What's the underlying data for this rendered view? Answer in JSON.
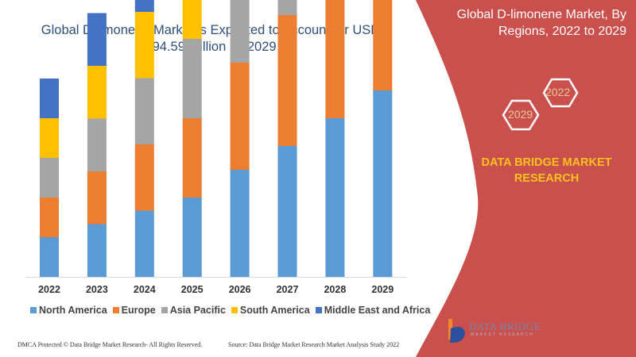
{
  "title": "Global D-limonene Market is Expected to Account for USD 694.59 Million by 2029",
  "side_panel": {
    "title": "Global D-limonene Market, By Regions, 2022 to 2029",
    "hex_labels": [
      "2022",
      "2029"
    ],
    "brand": "DATA BRIDGE MARKET RESEARCH",
    "logo_text": "DATA BRIDGE",
    "logo_subtext": "MARKET RESEARCH",
    "color": "#c9504c",
    "brand_color": "#f7c21b"
  },
  "footer": {
    "left": "DMCA Protected © Data Bridge Market Research- All Rights Reserved.",
    "right": "Source: Data Bridge Market Research Market Analysis Study 2022"
  },
  "chart_data": {
    "type": "bar",
    "stacked": true,
    "title": "",
    "xlabel": "",
    "ylabel": "",
    "y_axis_shown": false,
    "grid": false,
    "legend_position": "bottom",
    "categories": [
      "2022",
      "2023",
      "2024",
      "2025",
      "2026",
      "2027",
      "2028",
      "2029"
    ],
    "series": [
      {
        "name": "North America",
        "color": "#5b9bd5",
        "values": [
          10,
          13.3,
          16.7,
          20,
          27,
          33,
          40,
          47
        ]
      },
      {
        "name": "Europe",
        "color": "#ed7d31",
        "values": [
          10,
          13.3,
          16.7,
          20,
          27,
          33,
          40,
          47
        ]
      },
      {
        "name": "Asia Pacific",
        "color": "#a5a5a5",
        "values": [
          10,
          13.3,
          16.7,
          20,
          27,
          33,
          40,
          47
        ]
      },
      {
        "name": "South America",
        "color": "#ffc000",
        "values": [
          10,
          13.3,
          16.7,
          20,
          27,
          33,
          40,
          47
        ]
      },
      {
        "name": "Middle East and Africa",
        "color": "#4472c4",
        "values": [
          10,
          13.3,
          16.7,
          20,
          27,
          33,
          40,
          47
        ]
      }
    ]
  }
}
